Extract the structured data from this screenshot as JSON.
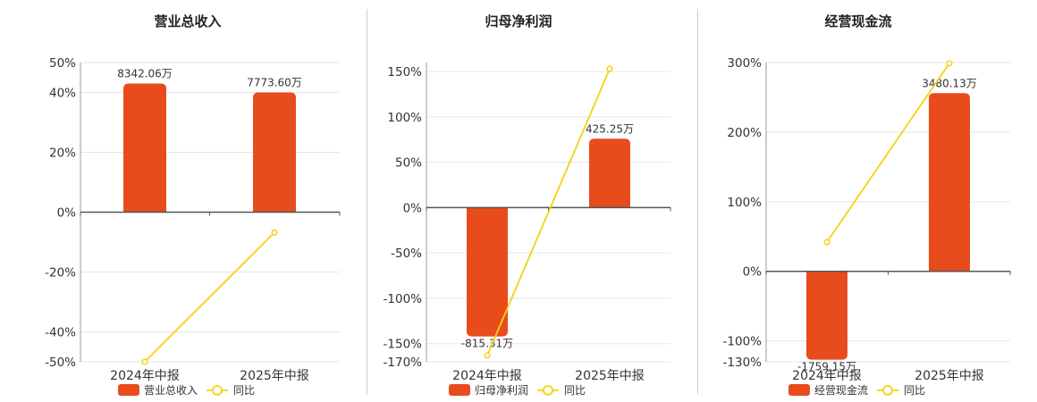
{
  "legend": {
    "yoy_label": "同比"
  },
  "colors": {
    "bar": "#E84C1D",
    "line": "#F5D20F",
    "axis": "#555555",
    "grid": "#e6e6e6",
    "text": "#333333"
  },
  "chart_data": [
    {
      "type": "bar",
      "title": "营业总收入",
      "categories": [
        "2024年中报",
        "2025年中报"
      ],
      "series": [
        {
          "name": "营业总收入",
          "kind": "bar",
          "values": [
            43,
            40
          ],
          "labels": [
            "8342.06万",
            "7773.60万"
          ]
        },
        {
          "name": "同比",
          "kind": "line",
          "values": [
            -50,
            -6.8
          ]
        }
      ],
      "ylim": [
        -50,
        50
      ],
      "yticks": [
        50,
        40,
        20,
        0,
        -20,
        -40,
        -50
      ],
      "ytick_labels": [
        "50%",
        "40%",
        "20%",
        "0%",
        "-20%",
        "-40%",
        "-50%"
      ],
      "grid": true,
      "legend": "bottom"
    },
    {
      "type": "bar",
      "title": "归母净利润",
      "categories": [
        "2024年中报",
        "2025年中报"
      ],
      "series": [
        {
          "name": "归母净利润",
          "kind": "bar",
          "values": [
            -142,
            76
          ],
          "labels": [
            "-815.31万",
            "425.25万"
          ]
        },
        {
          "name": "同比",
          "kind": "line",
          "values": [
            -163,
            153
          ]
        }
      ],
      "ylim": [
        -170,
        160
      ],
      "yticks": [
        150,
        100,
        50,
        0,
        -50,
        -100,
        -150,
        -170
      ],
      "ytick_labels": [
        "150%",
        "100%",
        "50%",
        "0%",
        "-50%",
        "-100%",
        "-150%",
        "-170%"
      ],
      "grid": true,
      "legend": "bottom"
    },
    {
      "type": "bar",
      "title": "经营现金流",
      "categories": [
        "2024年中报",
        "2025年中报"
      ],
      "series": [
        {
          "name": "经营现金流",
          "kind": "bar",
          "values": [
            -127,
            256
          ],
          "labels": [
            "-1759.15万",
            "3480.13万"
          ]
        },
        {
          "name": "同比",
          "kind": "line",
          "values": [
            42,
            299
          ]
        }
      ],
      "ylim": [
        -130,
        300
      ],
      "yticks": [
        300,
        200,
        100,
        0,
        -100,
        -130
      ],
      "ytick_labels": [
        "300%",
        "200%",
        "100%",
        "0%",
        "-100%",
        "-130%"
      ],
      "grid": true,
      "legend": "bottom"
    }
  ]
}
